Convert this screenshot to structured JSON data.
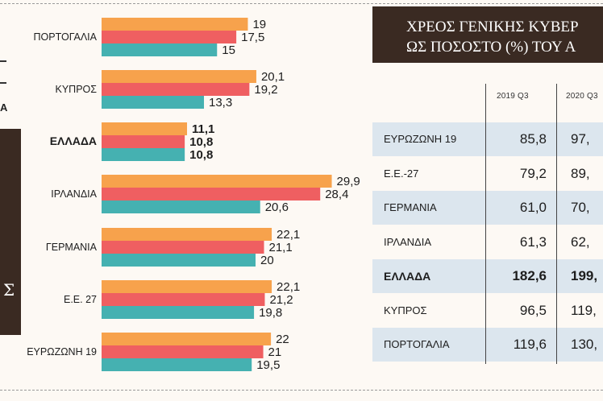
{
  "colors": {
    "series_2019": "#f7a24c",
    "series_2020_q2": "#ef5f61",
    "series_2020_q3": "#45b1b1",
    "header_bg": "#3a2a22",
    "row_shade": "#dce6ee"
  },
  "chart_data": [
    {
      "type": "bar",
      "orientation": "horizontal",
      "categories": [
        "ΠΟΡΤΟΓΑΛΙΑ",
        "ΚΥΠΡΟΣ",
        "ΕΛΛΑΔΑ",
        "ΙΡΛΑΝΔΙΑ",
        "ΓΕΡΜΑΝΙΑ",
        "Ε.Ε. 27",
        "ΕΥΡΩΖΩΝΗ 19"
      ],
      "highlighted_category": "ΕΛΛΑΔΑ",
      "series": [
        {
          "name": "series-orange",
          "values": [
            19,
            20.1,
            11.1,
            29.9,
            22.1,
            22.1,
            22
          ]
        },
        {
          "name": "series-red",
          "values": [
            17.5,
            19.2,
            10.8,
            28.4,
            21.1,
            21.2,
            21
          ]
        },
        {
          "name": "series-teal",
          "values": [
            15,
            13.3,
            10.8,
            20.6,
            20,
            19.8,
            19.5
          ]
        }
      ],
      "value_labels": [
        [
          "19",
          "17,5",
          "15"
        ],
        [
          "20,1",
          "19,2",
          "13,3"
        ],
        [
          "11,1",
          "10,8",
          "10,8"
        ],
        [
          "29,9",
          "28,4",
          "20,6"
        ],
        [
          "22,1",
          "21,1",
          "20"
        ],
        [
          "22,1",
          "21,2",
          "19,8"
        ],
        [
          "22",
          "21",
          "19,5"
        ]
      ],
      "xlim": [
        0,
        30
      ]
    },
    {
      "type": "table",
      "title_line1": "ΧΡΕΟΣ ΓΕΝΙΚΗΣ ΚΥΒΕΡ",
      "title_line2": "ΩΣ ΠΟΣΟΣΤΟ (%)  ΤΟΥ Α",
      "columns": [
        "2019 Q3",
        "2020 Q3"
      ],
      "rows": [
        {
          "name": "ΕΥΡΩΖΩΝΗ 19",
          "v1": "85,8",
          "v2": "97,",
          "shaded": true,
          "bold": false
        },
        {
          "name": "Ε.Ε.-27",
          "v1": "79,2",
          "v2": "89,",
          "shaded": false,
          "bold": false
        },
        {
          "name": "ΓΕΡΜΑΝΙΑ",
          "v1": "61,0",
          "v2": "70,",
          "shaded": true,
          "bold": false
        },
        {
          "name": "ΙΡΛΑΝΔΙΑ",
          "v1": "61,3",
          "v2": "62,",
          "shaded": false,
          "bold": false
        },
        {
          "name": "ΕΛΛΑΔΑ",
          "v1": "182,6",
          "v2": "199,",
          "shaded": true,
          "bold": true
        },
        {
          "name": "ΚΥΠΡΟΣ",
          "v1": "96,5",
          "v2": "119,",
          "shaded": false,
          "bold": false
        },
        {
          "name": "ΠΟΡΤΟΓΑΛΙΑ",
          "v1": "119,6",
          "v2": "130,",
          "shaded": true,
          "bold": false
        }
      ]
    }
  ],
  "left_panel": {
    "partial_char": "Σ"
  }
}
